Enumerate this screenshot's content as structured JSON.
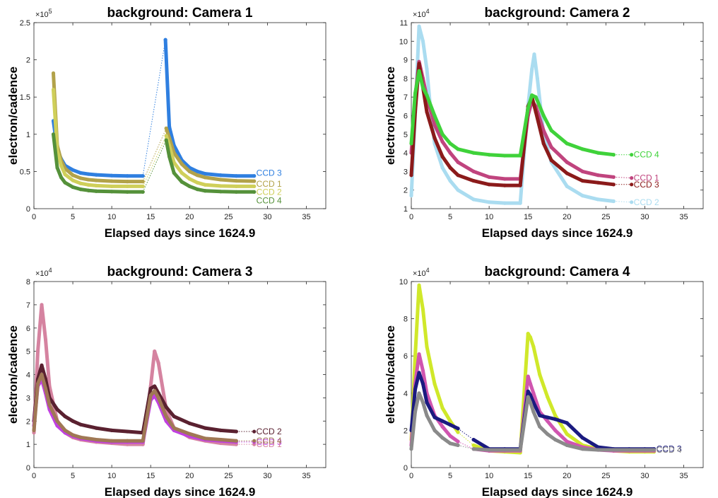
{
  "chart_data": [
    {
      "type": "scatter",
      "title": "background: Camera 1",
      "xlabel": "Elapsed days since 1624.9",
      "ylabel": "electron/cadence",
      "xlim": [
        0,
        37.5
      ],
      "ylim": [
        0,
        250000
      ],
      "xticks": [
        "0",
        "5",
        "10",
        "15",
        "20",
        "25",
        "30",
        "35"
      ],
      "yticks": [
        "0",
        "0.5",
        "1",
        "1.5",
        "2",
        "2.5"
      ],
      "exponent": "5",
      "grid": false,
      "series": [
        {
          "name": "CCD 3",
          "color": "#2f7fe0",
          "x": [
            2.5,
            3,
            3.5,
            4,
            5,
            6,
            7,
            8,
            10,
            12,
            14,
            16.9,
            17.4,
            18,
            19,
            20,
            21,
            22,
            24,
            26,
            28.3
          ],
          "y": [
            118000,
            80000,
            67000,
            58000,
            52000,
            48000,
            46500,
            45500,
            44500,
            44000,
            44000,
            227000,
            110000,
            85000,
            65000,
            55000,
            50000,
            47000,
            45000,
            44000,
            44000
          ]
        },
        {
          "name": "CCD 1",
          "color": "#b2a24a",
          "x": [
            2.5,
            3,
            3.5,
            4,
            5,
            6,
            7,
            8,
            10,
            12,
            14,
            17,
            17.4,
            18,
            19,
            20,
            21,
            22,
            24,
            26,
            28.3
          ],
          "y": [
            182000,
            85000,
            65000,
            54000,
            45000,
            41000,
            39000,
            38000,
            37000,
            36500,
            36500,
            108000,
            95000,
            75000,
            60000,
            50000,
            45000,
            42000,
            39000,
            37500,
            37000
          ]
        },
        {
          "name": "CCD 2",
          "color": "#cfcf5a",
          "x": [
            2.5,
            3,
            3.5,
            4,
            5,
            6,
            7,
            8,
            10,
            12,
            14,
            17,
            17.4,
            18,
            19,
            20,
            21,
            22,
            24,
            26,
            28.3
          ],
          "y": [
            160000,
            78000,
            58000,
            46000,
            38000,
            34000,
            32000,
            31000,
            30000,
            30000,
            30000,
            98000,
            85000,
            62000,
            48000,
            40000,
            35000,
            32000,
            30500,
            30000,
            30000
          ]
        },
        {
          "name": "CCD 4",
          "color": "#55913a",
          "x": [
            2.5,
            3,
            3.5,
            4,
            5,
            6,
            7,
            8,
            10,
            12,
            14,
            17,
            17.4,
            18,
            19,
            20,
            21,
            22,
            24,
            26,
            28.3
          ],
          "y": [
            100000,
            55000,
            42000,
            35000,
            29000,
            26000,
            24500,
            23500,
            23000,
            22500,
            22500,
            92000,
            70000,
            48000,
            36000,
            30000,
            26000,
            24000,
            23000,
            22500,
            22500
          ]
        }
      ],
      "labels": [
        "CCD 3",
        "CCD 1",
        "CCD 2",
        "CCD 4"
      ]
    },
    {
      "type": "scatter",
      "title": "background: Camera 2",
      "xlabel": "Elapsed days since 1624.9",
      "ylabel": "electron/cadence",
      "xlim": [
        0,
        37.5
      ],
      "ylim": [
        10000,
        110000
      ],
      "xticks": [
        "0",
        "5",
        "10",
        "15",
        "20",
        "25",
        "30",
        "35"
      ],
      "yticks": [
        "1",
        "2",
        "3",
        "4",
        "5",
        "6",
        "7",
        "8",
        "9",
        "10",
        "11"
      ],
      "exponent": "4",
      "grid": false,
      "series": [
        {
          "name": "CCD 2",
          "color": "#aadcf0",
          "x": [
            0,
            0.5,
            1,
            1.5,
            2,
            2.5,
            3,
            4,
            5,
            6,
            8,
            10,
            12,
            14,
            14.5,
            15,
            15.5,
            15.8,
            16.2,
            17,
            18,
            20,
            22,
            24,
            26,
            28.3
          ],
          "y": [
            17000,
            60000,
            108000,
            100000,
            85000,
            62000,
            45000,
            32000,
            25000,
            20000,
            15000,
            13500,
            13000,
            13000,
            40000,
            65000,
            85000,
            93000,
            80000,
            50000,
            35000,
            22000,
            17000,
            15000,
            14000,
            13500
          ]
        },
        {
          "name": "CCD 1",
          "color": "#c0447e",
          "x": [
            0,
            0.5,
            1,
            1.5,
            2,
            3,
            4,
            5,
            6,
            8,
            10,
            12,
            14,
            15,
            15.5,
            16,
            17,
            18,
            20,
            22,
            24,
            26,
            28.3
          ],
          "y": [
            40000,
            70000,
            89000,
            80000,
            70000,
            55000,
            46000,
            40000,
            35000,
            30000,
            27000,
            26000,
            26000,
            60000,
            68000,
            65000,
            52000,
            43000,
            35000,
            30000,
            28000,
            27000,
            26500
          ]
        },
        {
          "name": "CCD 3",
          "color": "#8b1a1a",
          "x": [
            0,
            0.5,
            1,
            1.5,
            2,
            3,
            4,
            5,
            6,
            8,
            10,
            12,
            14,
            15,
            15.5,
            16,
            17,
            18,
            20,
            22,
            24,
            26,
            28.3
          ],
          "y": [
            28000,
            62000,
            88000,
            75000,
            62000,
            48000,
            38000,
            32000,
            28000,
            25000,
            23000,
            22500,
            22500,
            65000,
            70000,
            62000,
            45000,
            36000,
            29000,
            25000,
            24000,
            23000,
            23000
          ]
        },
        {
          "name": "CCD 4",
          "color": "#3fd23a",
          "x": [
            0,
            0.5,
            1,
            1.5,
            2,
            3,
            4,
            5,
            6,
            8,
            10,
            12,
            14,
            15,
            15.5,
            16,
            17,
            18,
            20,
            22,
            24,
            26,
            28.3
          ],
          "y": [
            45000,
            72000,
            84000,
            75000,
            71000,
            60000,
            50000,
            45000,
            42000,
            40000,
            39000,
            38500,
            38500,
            64000,
            71000,
            70000,
            60000,
            52000,
            45000,
            42000,
            40000,
            39000,
            39000
          ]
        }
      ],
      "labels": [
        "CCD 4",
        "CCD 1",
        "CCD 3",
        "CCD 2"
      ]
    },
    {
      "type": "scatter",
      "title": "background: Camera 3",
      "xlabel": "Elapsed days since 1624.9",
      "ylabel": "electron/cadence",
      "xlim": [
        0,
        37.5
      ],
      "ylim": [
        0,
        80000
      ],
      "xticks": [
        "0",
        "5",
        "10",
        "15",
        "20",
        "25",
        "30",
        "35"
      ],
      "yticks": [
        "0",
        "1",
        "2",
        "3",
        "4",
        "5",
        "6",
        "7",
        "8"
      ],
      "exponent": "4",
      "grid": false,
      "series": [
        {
          "name": "CCD 1",
          "color": "#d583a0",
          "x": [
            0,
            0.5,
            1,
            1.5,
            2,
            3,
            4,
            5,
            6,
            8,
            10,
            12,
            14,
            15,
            15.5,
            16,
            17,
            18,
            20,
            22,
            24,
            26,
            28.3
          ],
          "y": [
            15000,
            50000,
            70000,
            55000,
            35000,
            20000,
            15000,
            13000,
            12000,
            11000,
            10500,
            10000,
            10000,
            35000,
            50000,
            45000,
            25000,
            17000,
            13000,
            11500,
            10500,
            10000,
            10000
          ]
        },
        {
          "name": "CCD 2",
          "color": "#5a2130",
          "x": [
            0,
            0.5,
            1,
            1.5,
            2,
            3,
            4,
            5,
            6,
            8,
            10,
            12,
            14,
            15,
            15.5,
            16,
            17,
            18,
            20,
            22,
            24,
            26,
            28.3
          ],
          "y": [
            20000,
            38000,
            44000,
            38000,
            30000,
            25000,
            22000,
            20000,
            18500,
            17000,
            16000,
            15500,
            15000,
            34000,
            35000,
            32000,
            26000,
            22000,
            19000,
            17000,
            16000,
            15500,
            15500
          ]
        },
        {
          "name": "CCD 3",
          "color": "#c040e0",
          "x": [
            0,
            0.5,
            1,
            1.5,
            2,
            3,
            4,
            5,
            6,
            8,
            10,
            12,
            14,
            15,
            15.5,
            16,
            17,
            18,
            20,
            22,
            24,
            26,
            28.3
          ],
          "y": [
            18000,
            35000,
            38000,
            32000,
            25000,
            18000,
            15000,
            13500,
            12500,
            11500,
            11000,
            11000,
            11000,
            29000,
            31000,
            28000,
            20000,
            16000,
            13500,
            12000,
            11500,
            11000,
            11000
          ]
        },
        {
          "name": "CCD 4",
          "color": "#a07855",
          "x": [
            0,
            0.5,
            1,
            1.5,
            2,
            3,
            4,
            5,
            6,
            8,
            10,
            12,
            14,
            15,
            15.5,
            16,
            17,
            18,
            20,
            22,
            24,
            26,
            28.3
          ],
          "y": [
            16000,
            36000,
            40000,
            34000,
            27000,
            20000,
            16000,
            14000,
            13000,
            12000,
            11500,
            11500,
            11500,
            31000,
            33000,
            30000,
            22000,
            17000,
            14500,
            12500,
            12000,
            11500,
            11500
          ]
        }
      ],
      "labels": [
        "CCD 2",
        "CCD 3",
        "CCD 1",
        "CCD 4"
      ]
    },
    {
      "type": "scatter",
      "title": "background: Camera 4",
      "xlabel": "Elapsed days since 1624.9",
      "ylabel": "electron/cadence",
      "xlim": [
        0,
        37.5
      ],
      "ylim": [
        0,
        100000
      ],
      "xticks": [
        "0",
        "5",
        "10",
        "15",
        "20",
        "25",
        "30",
        "35"
      ],
      "yticks": [
        "0",
        "2",
        "4",
        "6",
        "8",
        "10"
      ],
      "exponent": "4",
      "grid": false,
      "series": [
        {
          "name": "CCD 2",
          "color": "#d0e82a",
          "x": [
            0,
            0.5,
            1,
            1.5,
            2,
            3,
            4,
            5,
            6,
            8,
            10,
            12,
            14,
            15,
            15.3,
            15.7,
            16.5,
            17.5,
            18.5,
            20,
            22,
            24,
            26,
            28,
            30,
            31.2
          ],
          "y": [
            15000,
            60000,
            98000,
            85000,
            65000,
            45000,
            32000,
            25000,
            19000,
            12000,
            9000,
            8500,
            8000,
            72000,
            70000,
            65000,
            50000,
            38000,
            28000,
            18000,
            12000,
            10000,
            9000,
            8500,
            8500,
            8500
          ]
        },
        {
          "name": "CCD 1",
          "color": "#d055b0",
          "x": [
            0,
            0.5,
            1,
            1.5,
            2,
            3,
            4,
            5,
            6,
            8,
            10,
            12,
            14,
            15,
            15.3,
            15.7,
            16.5,
            17.5,
            18.5,
            20,
            22,
            24,
            26,
            28,
            30,
            31.2
          ],
          "y": [
            12000,
            45000,
            61000,
            52000,
            40000,
            28000,
            22000,
            17000,
            14000,
            10000,
            9000,
            9000,
            9000,
            49000,
            45000,
            40000,
            30000,
            25000,
            20000,
            14000,
            11000,
            9500,
            9000,
            9000,
            9000,
            9000
          ]
        },
        {
          "name": "CCD 3",
          "color": "#1a1a80",
          "x": [
            0,
            0.5,
            1,
            1.5,
            2,
            3,
            4,
            5,
            6,
            8,
            10,
            12,
            14,
            15,
            15.3,
            15.7,
            16.5,
            17.5,
            18.5,
            20,
            22,
            24,
            26,
            28,
            30,
            31.2
          ],
          "y": [
            20000,
            42000,
            51000,
            45000,
            35000,
            27000,
            25000,
            23000,
            21000,
            15000,
            10000,
            10000,
            10000,
            41000,
            39000,
            35000,
            28000,
            27000,
            26000,
            24000,
            16000,
            11000,
            10000,
            10000,
            10000,
            10000
          ]
        },
        {
          "name": "CCD 4",
          "color": "#8a8a8a",
          "x": [
            0,
            0.5,
            1,
            1.5,
            2,
            3,
            4,
            5,
            6,
            8,
            10,
            12,
            14,
            15,
            15.3,
            15.7,
            16.5,
            17.5,
            18.5,
            20,
            22,
            24,
            26,
            28,
            30,
            31.2
          ],
          "y": [
            10000,
            30000,
            40000,
            35000,
            28000,
            20000,
            16000,
            13000,
            12000,
            10000,
            9500,
            9500,
            9500,
            38000,
            35000,
            30000,
            22000,
            18000,
            15000,
            12000,
            10000,
            9500,
            9500,
            9500,
            9500,
            9500
          ]
        }
      ],
      "labels": [
        "CCD 3",
        "CCD 4"
      ]
    }
  ]
}
